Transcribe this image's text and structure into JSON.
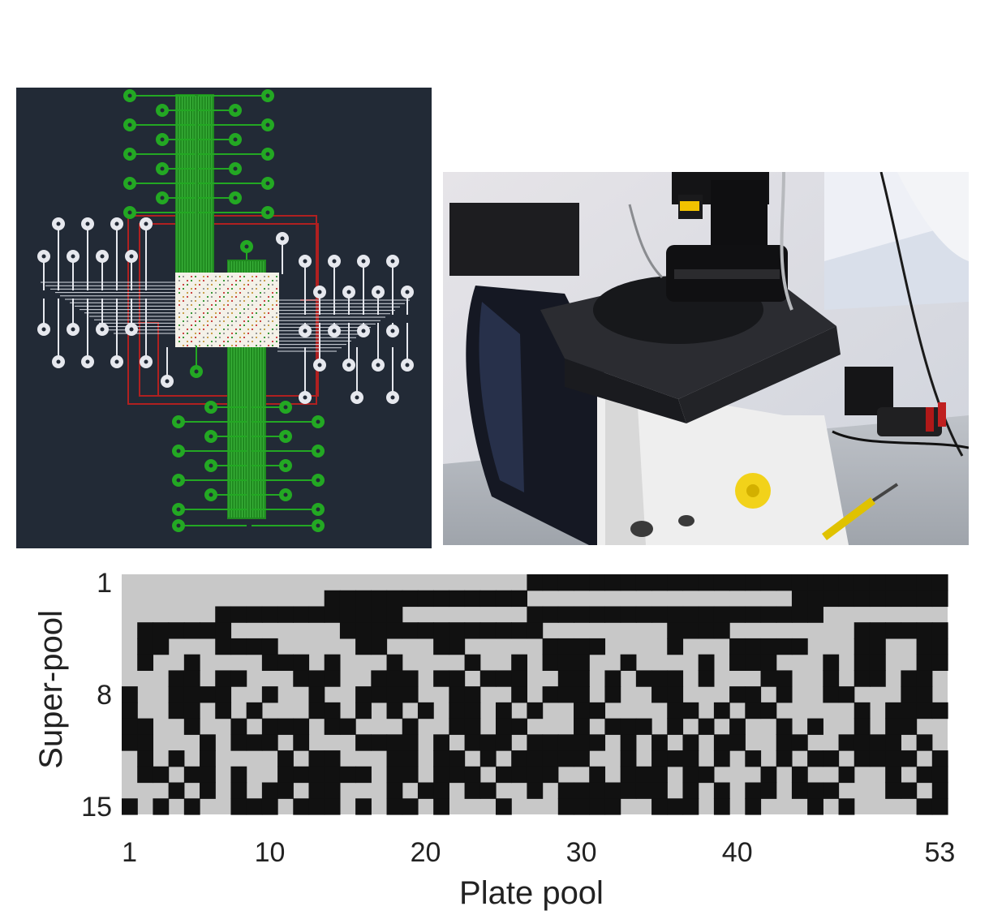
{
  "figure": {
    "panels": [
      {
        "id": "chip-layout",
        "kind": "electrode-array-layout-drawing"
      },
      {
        "id": "microscope-photo",
        "kind": "photograph-of-inverted-microscope-setup"
      },
      {
        "id": "pooling-matrix",
        "kind": "binary-heatmap"
      }
    ]
  },
  "chart_data": {
    "type": "heatmap",
    "xlabel": "Plate pool",
    "ylabel": "Super-pool",
    "xlim": [
      1,
      53
    ],
    "ylim": [
      1,
      15
    ],
    "x_ticks": [
      "1",
      "10",
      "20",
      "30",
      "40",
      "53"
    ],
    "x_tick_values": [
      1,
      10,
      20,
      30,
      40,
      53
    ],
    "y_ticks": [
      "1",
      "8",
      "15"
    ],
    "y_tick_values": [
      1,
      8,
      15
    ],
    "colors": {
      "filled": "#111111",
      "empty": "#c8c8c8"
    },
    "rows": [
      "00000000000000000000000000111111111111111111111111111",
      "00000000000001111111111111000000000000000001111111111",
      "00000011111111111100000000111111111111111111100000000",
      "01111110000000111111111111100000000111100000000111111",
      "01100011110000011000110000011110000100011111000110011",
      "01001000011101000100001001011100100001011100010110011",
      "00011011000111001110110111001101011101000110010110110",
      "10011110010010011110011001011101001100011010011000110",
      "10011010100011010101011010100110000110101100000101111",
      "11001001011101100010011011000101110101010010100101100",
      "11000101110100011110101110111110101010110011001111010",
      "01010100001011000110110101111100101110101010110111101",
      "01101101001111110110111011110010111011000101001001011",
      "00010101011011000101101100101111111010101101110001101",
      "10101001110111010110100010001111001110101000101000011"
    ]
  }
}
